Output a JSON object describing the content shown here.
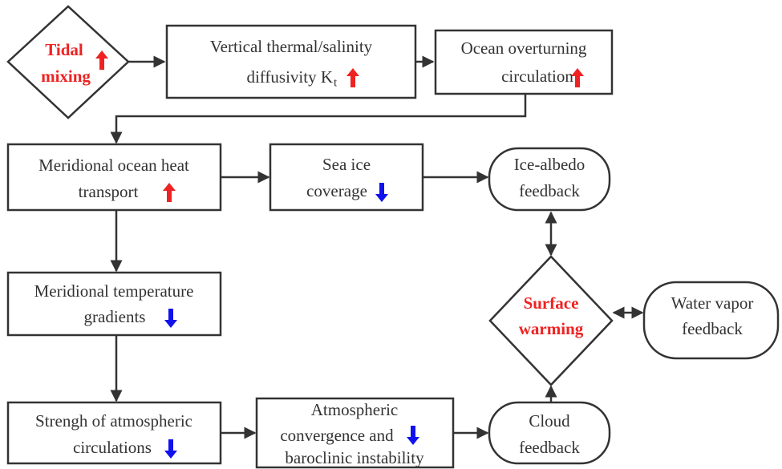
{
  "nodes": [
    {
      "lines": [
        "Tidal",
        "mixing"
      ]
    },
    {
      "lines": [
        "Vertical thermal/salinity",
        "diffusivity K"
      ],
      "subscript": "t"
    },
    {
      "lines": [
        "Ocean overturning",
        "circulation"
      ]
    },
    {
      "lines": [
        "Meridional ocean heat",
        "transport"
      ]
    },
    {
      "lines": [
        "Sea ice",
        "coverage"
      ]
    },
    {
      "lines": [
        "Ice-albedo",
        "feedback"
      ]
    },
    {
      "lines": [
        "Meridional temperature",
        "gradients"
      ]
    },
    {
      "lines": [
        "Surface",
        "warming"
      ]
    },
    {
      "lines": [
        "Water vapor",
        "feedback"
      ]
    },
    {
      "lines": [
        "Strengh of atmospheric",
        "circulations"
      ]
    },
    {
      "lines": [
        "Atmospheric",
        "convergence and",
        "baroclinic instability"
      ]
    },
    {
      "lines": [
        "Cloud",
        "feedback"
      ]
    }
  ]
}
